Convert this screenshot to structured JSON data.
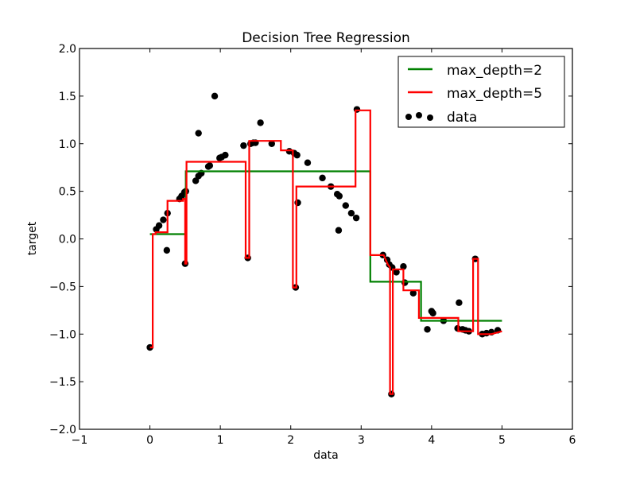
{
  "chart_data": {
    "type": "scatter",
    "title": "Decision Tree Regression",
    "xlabel": "data",
    "ylabel": "target",
    "xlim": [
      -1,
      6
    ],
    "ylim": [
      -2.0,
      2.0
    ],
    "xticks": [
      -1,
      0,
      1,
      2,
      3,
      4,
      5,
      6
    ],
    "xtick_labels": [
      "−1",
      "0",
      "1",
      "2",
      "3",
      "4",
      "5",
      "6"
    ],
    "yticks": [
      -2.0,
      -1.5,
      -1.0,
      -0.5,
      0.0,
      0.5,
      1.0,
      1.5,
      2.0
    ],
    "ytick_labels": [
      "−2.0",
      "−1.5",
      "−1.0",
      "−0.5",
      "0.0",
      "0.5",
      "1.0",
      "1.5",
      "2.0"
    ],
    "grid": false,
    "legend_position": "upper right",
    "series": [
      {
        "name": "max_depth=2",
        "kind": "step-line",
        "color": "#008000",
        "points": [
          [
            0.0,
            0.05
          ],
          [
            0.51,
            0.05
          ],
          [
            0.51,
            0.71
          ],
          [
            3.13,
            0.71
          ],
          [
            3.13,
            -0.45
          ],
          [
            3.85,
            -0.45
          ],
          [
            3.85,
            -0.86
          ],
          [
            5.0,
            -0.86
          ]
        ]
      },
      {
        "name": "max_depth=5",
        "kind": "step-line",
        "color": "#ff0000",
        "points": [
          [
            0.0,
            -1.14
          ],
          [
            0.04,
            -1.14
          ],
          [
            0.04,
            0.05
          ],
          [
            0.08,
            0.05
          ],
          [
            0.08,
            0.07
          ],
          [
            0.25,
            0.07
          ],
          [
            0.25,
            0.4
          ],
          [
            0.47,
            0.4
          ],
          [
            0.47,
            0.42
          ],
          [
            0.5,
            0.42
          ],
          [
            0.5,
            -0.26
          ],
          [
            0.52,
            -0.26
          ],
          [
            0.52,
            0.81
          ],
          [
            1.36,
            0.81
          ],
          [
            1.36,
            -0.2
          ],
          [
            1.41,
            -0.2
          ],
          [
            1.41,
            1.03
          ],
          [
            1.86,
            1.03
          ],
          [
            1.86,
            0.93
          ],
          [
            2.03,
            0.93
          ],
          [
            2.03,
            -0.51
          ],
          [
            2.08,
            -0.51
          ],
          [
            2.08,
            0.55
          ],
          [
            2.92,
            0.55
          ],
          [
            2.92,
            1.35
          ],
          [
            3.13,
            1.35
          ],
          [
            3.13,
            -0.17
          ],
          [
            3.32,
            -0.17
          ],
          [
            3.38,
            -0.27
          ],
          [
            3.41,
            -0.3
          ],
          [
            3.41,
            -1.63
          ],
          [
            3.45,
            -1.63
          ],
          [
            3.45,
            -0.32
          ],
          [
            3.6,
            -0.32
          ],
          [
            3.6,
            -0.54
          ],
          [
            3.82,
            -0.54
          ],
          [
            3.82,
            -0.83
          ],
          [
            4.38,
            -0.83
          ],
          [
            4.38,
            -0.97
          ],
          [
            4.59,
            -0.97
          ],
          [
            4.59,
            -0.21
          ],
          [
            4.66,
            -0.21
          ],
          [
            4.66,
            -1.0
          ],
          [
            4.85,
            -1.0
          ],
          [
            5.0,
            -0.97
          ]
        ]
      },
      {
        "name": "data",
        "kind": "scatter",
        "color": "#000000",
        "points": [
          [
            0.0,
            -1.14
          ],
          [
            0.09,
            0.1
          ],
          [
            0.13,
            0.14
          ],
          [
            0.19,
            0.2
          ],
          [
            0.24,
            -0.12
          ],
          [
            0.25,
            0.27
          ],
          [
            0.42,
            0.42
          ],
          [
            0.45,
            0.45
          ],
          [
            0.49,
            0.49
          ],
          [
            0.5,
            -0.26
          ],
          [
            0.51,
            0.5
          ],
          [
            0.65,
            0.61
          ],
          [
            0.69,
            0.66
          ],
          [
            0.73,
            0.69
          ],
          [
            0.69,
            1.11
          ],
          [
            0.83,
            0.76
          ],
          [
            0.85,
            0.77
          ],
          [
            0.92,
            1.5
          ],
          [
            0.99,
            0.85
          ],
          [
            1.02,
            0.86
          ],
          [
            1.07,
            0.88
          ],
          [
            1.33,
            0.98
          ],
          [
            1.39,
            -0.2
          ],
          [
            1.43,
            1.0
          ],
          [
            1.47,
            1.01
          ],
          [
            1.5,
            1.01
          ],
          [
            1.57,
            1.22
          ],
          [
            1.73,
            1.0
          ],
          [
            1.98,
            0.92
          ],
          [
            2.05,
            0.9
          ],
          [
            2.09,
            0.88
          ],
          [
            2.07,
            -0.51
          ],
          [
            2.1,
            0.38
          ],
          [
            2.24,
            0.8
          ],
          [
            2.45,
            0.64
          ],
          [
            2.57,
            0.55
          ],
          [
            2.66,
            0.47
          ],
          [
            2.69,
            0.45
          ],
          [
            2.68,
            0.09
          ],
          [
            2.78,
            0.35
          ],
          [
            2.86,
            0.27
          ],
          [
            2.93,
            0.22
          ],
          [
            2.94,
            1.36
          ],
          [
            3.31,
            -0.17
          ],
          [
            3.37,
            -0.22
          ],
          [
            3.4,
            -0.27
          ],
          [
            3.44,
            -0.3
          ],
          [
            3.43,
            -1.63
          ],
          [
            3.5,
            -0.35
          ],
          [
            3.6,
            -0.29
          ],
          [
            3.62,
            -0.46
          ],
          [
            3.74,
            -0.57
          ],
          [
            3.94,
            -0.95
          ],
          [
            4.0,
            -0.76
          ],
          [
            4.02,
            -0.78
          ],
          [
            4.17,
            -0.86
          ],
          [
            4.39,
            -0.67
          ],
          [
            4.37,
            -0.94
          ],
          [
            4.44,
            -0.95
          ],
          [
            4.48,
            -0.96
          ],
          [
            4.53,
            -0.97
          ],
          [
            4.62,
            -0.21
          ],
          [
            4.72,
            -1.0
          ],
          [
            4.78,
            -0.99
          ],
          [
            4.85,
            -0.98
          ],
          [
            4.94,
            -0.96
          ]
        ]
      }
    ]
  },
  "legend": {
    "items": [
      {
        "label": "max_depth=2",
        "color": "#008000",
        "kind": "line"
      },
      {
        "label": "max_depth=5",
        "color": "#ff0000",
        "kind": "line"
      },
      {
        "label": "data",
        "color": "#000000",
        "kind": "scatter"
      }
    ]
  }
}
